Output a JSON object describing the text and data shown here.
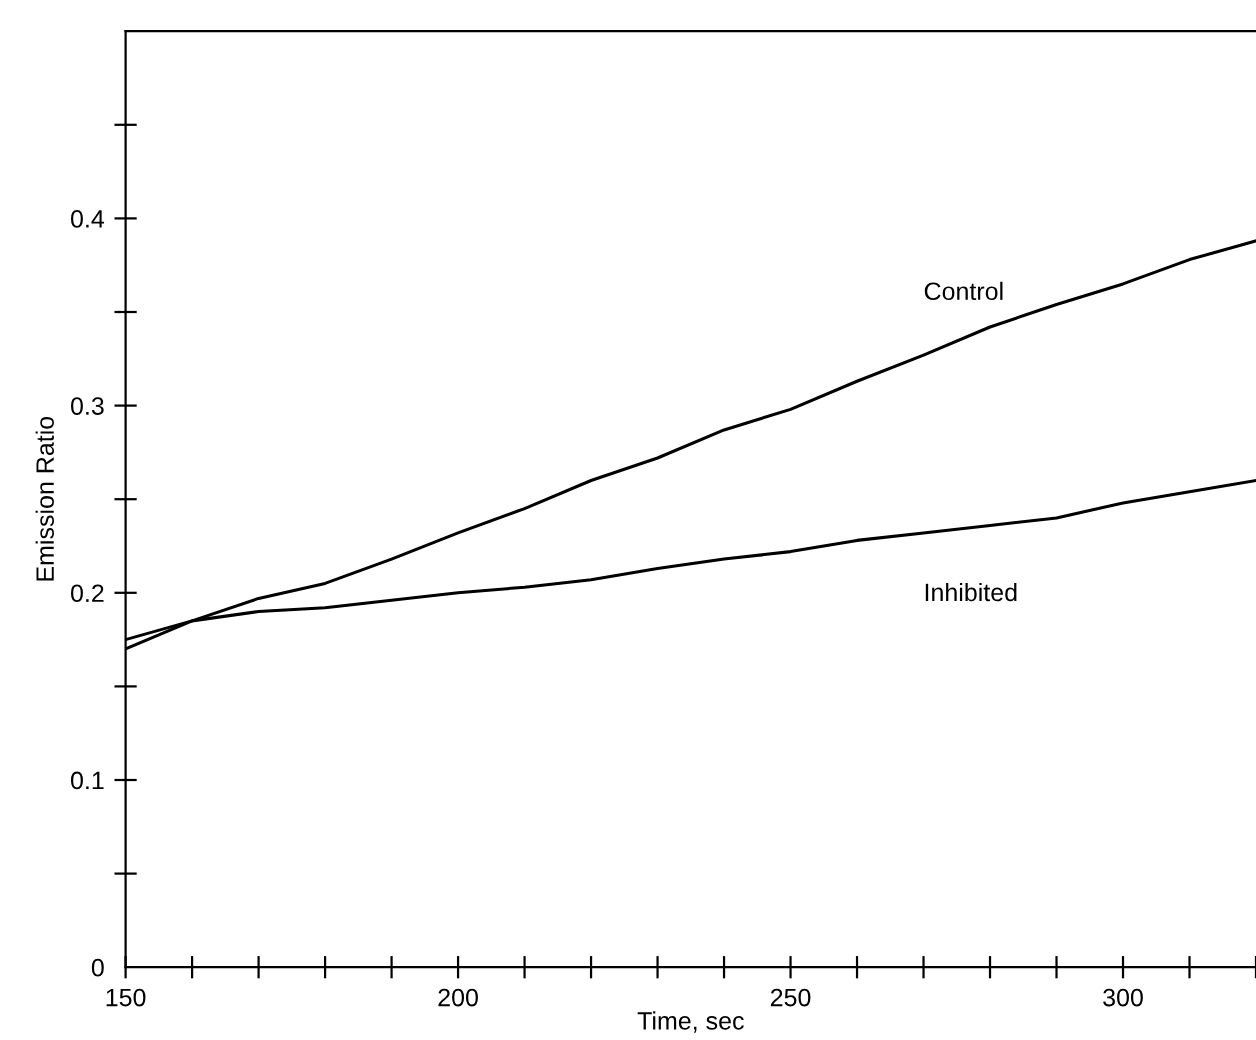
{
  "chart_data": {
    "type": "line",
    "xlabel": "Time, sec",
    "ylabel": "Emission Ratio",
    "x": [
      150,
      160,
      170,
      180,
      190,
      200,
      210,
      220,
      230,
      240,
      250,
      260,
      270,
      280,
      290,
      300,
      310,
      320
    ],
    "series": [
      {
        "name": "Control",
        "color": "#000000",
        "values": [
          0.17,
          0.185,
          0.197,
          0.205,
          0.218,
          0.232,
          0.245,
          0.26,
          0.272,
          0.287,
          0.298,
          0.313,
          0.327,
          0.342,
          0.354,
          0.365,
          0.378,
          0.388
        ]
      },
      {
        "name": "Inhibited",
        "color": "#000000",
        "values": [
          0.175,
          0.185,
          0.19,
          0.192,
          0.196,
          0.2,
          0.203,
          0.207,
          0.213,
          0.218,
          0.222,
          0.228,
          0.232,
          0.236,
          0.24,
          0.248,
          0.254,
          0.26
        ]
      }
    ],
    "xlim": [
      150,
      320
    ],
    "ylim": [
      0,
      0.5
    ],
    "xticks": [
      150,
      {
        "value": 160,
        "label": null
      },
      {
        "value": 170,
        "label": null
      },
      {
        "value": 180,
        "label": null
      },
      {
        "value": 190,
        "label": null
      },
      200,
      {
        "value": 210,
        "label": null
      },
      {
        "value": 220,
        "label": null
      },
      {
        "value": 230,
        "label": null
      },
      {
        "value": 240,
        "label": null
      },
      250,
      {
        "value": 260,
        "label": null
      },
      {
        "value": 270,
        "label": null
      },
      {
        "value": 280,
        "label": null
      },
      {
        "value": 290,
        "label": null
      },
      300,
      {
        "value": 310,
        "label": null
      },
      {
        "value": 320,
        "label": null
      }
    ],
    "yticks": [
      0,
      {
        "value": 0.05,
        "label": null
      },
      0.1,
      {
        "value": 0.15,
        "label": null
      },
      0.2,
      {
        "value": 0.25,
        "label": null
      },
      0.3,
      {
        "value": 0.35,
        "label": null
      },
      0.4,
      {
        "value": 0.45,
        "label": null
      }
    ],
    "grid": false,
    "legend": false,
    "marker": "none",
    "line_style": "solid"
  }
}
